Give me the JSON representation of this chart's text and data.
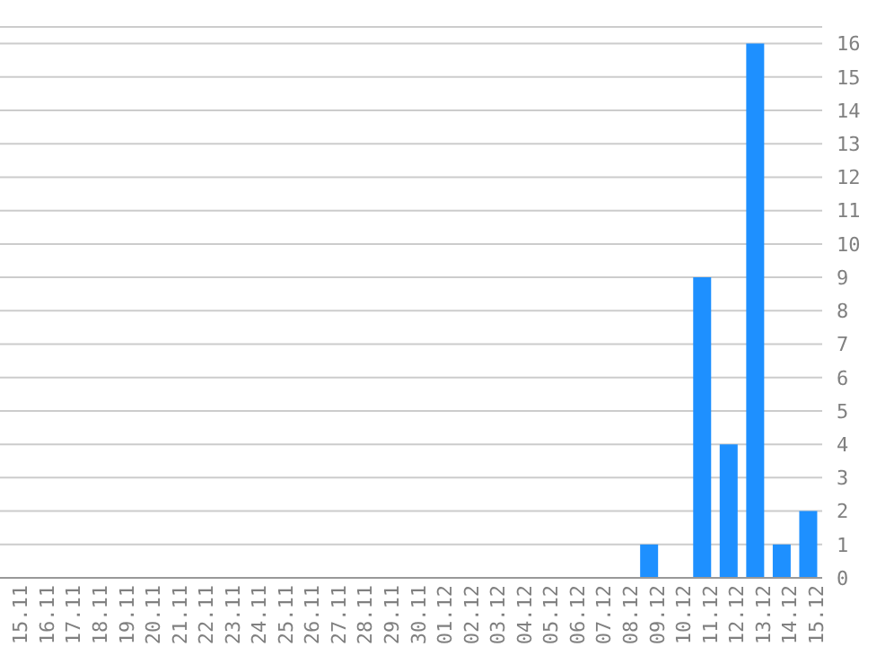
{
  "chart_data": {
    "type": "bar",
    "categories": [
      "15.11",
      "16.11",
      "17.11",
      "18.11",
      "19.11",
      "20.11",
      "21.11",
      "22.11",
      "23.11",
      "24.11",
      "25.11",
      "26.11",
      "27.11",
      "28.11",
      "29.11",
      "30.11",
      "01.12",
      "02.12",
      "03.12",
      "04.12",
      "05.12",
      "06.12",
      "07.12",
      "08.12",
      "09.12",
      "10.12",
      "11.12",
      "12.12",
      "13.12",
      "14.12",
      "15.12"
    ],
    "values": [
      0,
      0,
      0,
      0,
      0,
      0,
      0,
      0,
      0,
      0,
      0,
      0,
      0,
      0,
      0,
      0,
      0,
      0,
      0,
      0,
      0,
      0,
      0,
      0,
      1,
      0,
      9,
      4,
      16,
      1,
      2
    ],
    "color": "#1e90ff",
    "ylim": [
      0,
      16.5
    ],
    "yticks": [
      0,
      1,
      2,
      3,
      4,
      5,
      6,
      7,
      8,
      9,
      10,
      11,
      12,
      13,
      14,
      15,
      16
    ],
    "grid": "y"
  }
}
